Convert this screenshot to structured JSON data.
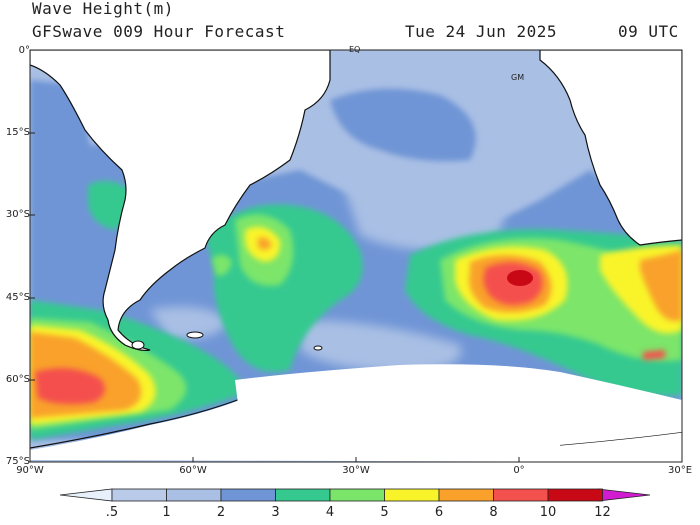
{
  "header": {
    "title": "Wave Height(m)",
    "model_line": "GFSwave 009 Hour Forecast",
    "date": "Tue 24 Jun 2025",
    "time": "09 UTC"
  },
  "map": {
    "lat_labels": [
      "0°",
      "15°S",
      "30°S",
      "45°S",
      "60°S",
      "75°S"
    ],
    "lon_labels": [
      "90°W",
      "60°W",
      "30°W",
      "0°",
      "30°E"
    ],
    "markers": {
      "eq": "EQ",
      "gm": "GM"
    },
    "land_color": "#ffffff",
    "ice_color": "#ffffff"
  },
  "colorbar": {
    "labels": [
      ".5",
      "1",
      "2",
      "3",
      "4",
      "5",
      "6",
      "8",
      "10",
      "12"
    ],
    "colors": [
      "#e8f0fb",
      "#b9cbe9",
      "#a9bfe4",
      "#6f95d6",
      "#35c990",
      "#7be56a",
      "#f9f42a",
      "#f9a12a",
      "#f4504e",
      "#c80815",
      "#d21cd2"
    ]
  }
}
